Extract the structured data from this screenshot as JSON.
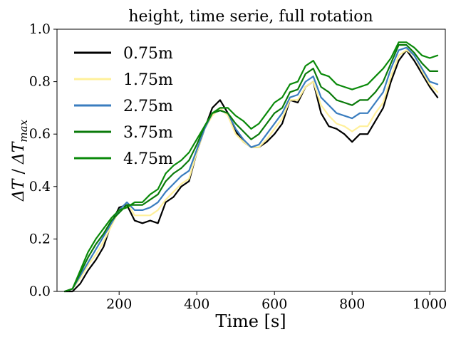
{
  "chart_data": {
    "type": "line",
    "title": "height, time serie, full rotation",
    "xlabel": "Time [s]",
    "ylabel": "ΔT / ΔT_max",
    "ylabel_parts": {
      "a": "ΔT",
      "slash": " / ",
      "b": "ΔT",
      "sub": "max"
    },
    "xlim": [
      40,
      1040
    ],
    "ylim": [
      0.0,
      1.0
    ],
    "xticks": [
      200,
      400,
      600,
      800,
      1000
    ],
    "yticks": [
      0.0,
      0.2,
      0.4,
      0.6,
      0.8,
      1.0
    ],
    "xtick_labels": [
      "200",
      "400",
      "600",
      "800",
      "1000"
    ],
    "ytick_labels": [
      "0.0",
      "0.2",
      "0.4",
      "0.6",
      "0.8",
      "1.0"
    ],
    "grid": false,
    "legend_position": "upper-left",
    "x": [
      60,
      80,
      100,
      120,
      140,
      160,
      180,
      200,
      220,
      240,
      260,
      280,
      300,
      320,
      340,
      360,
      380,
      400,
      420,
      440,
      460,
      480,
      500,
      520,
      540,
      560,
      580,
      600,
      620,
      640,
      660,
      680,
      700,
      720,
      740,
      760,
      780,
      800,
      820,
      840,
      860,
      880,
      900,
      920,
      940,
      960,
      980,
      1000,
      1020
    ],
    "series": [
      {
        "name": "0.75m",
        "color": "#000000",
        "values": [
          0.0,
          0.0,
          0.03,
          0.08,
          0.12,
          0.17,
          0.26,
          0.32,
          0.33,
          0.27,
          0.26,
          0.27,
          0.26,
          0.34,
          0.36,
          0.4,
          0.42,
          0.53,
          0.62,
          0.7,
          0.73,
          0.68,
          0.61,
          0.57,
          0.55,
          0.55,
          0.57,
          0.6,
          0.64,
          0.73,
          0.72,
          0.78,
          0.8,
          0.68,
          0.63,
          0.62,
          0.6,
          0.57,
          0.6,
          0.6,
          0.65,
          0.7,
          0.8,
          0.88,
          0.92,
          0.88,
          0.83,
          0.78,
          0.74
        ]
      },
      {
        "name": "1.75m",
        "color": "#fff09a",
        "values": [
          0.0,
          0.01,
          0.05,
          0.1,
          0.14,
          0.19,
          0.25,
          0.31,
          0.34,
          0.29,
          0.29,
          0.29,
          0.31,
          0.35,
          0.38,
          0.41,
          0.43,
          0.53,
          0.62,
          0.67,
          0.7,
          0.67,
          0.6,
          0.57,
          0.55,
          0.55,
          0.58,
          0.62,
          0.66,
          0.73,
          0.73,
          0.78,
          0.8,
          0.71,
          0.67,
          0.64,
          0.63,
          0.61,
          0.63,
          0.63,
          0.68,
          0.72,
          0.82,
          0.9,
          0.92,
          0.9,
          0.84,
          0.79,
          0.76
        ]
      },
      {
        "name": "2.75m",
        "color": "#3a7dbf",
        "values": [
          0.0,
          0.01,
          0.06,
          0.11,
          0.16,
          0.21,
          0.26,
          0.31,
          0.34,
          0.31,
          0.31,
          0.32,
          0.34,
          0.38,
          0.41,
          0.44,
          0.46,
          0.54,
          0.62,
          0.68,
          0.69,
          0.68,
          0.62,
          0.58,
          0.55,
          0.56,
          0.6,
          0.64,
          0.68,
          0.74,
          0.75,
          0.8,
          0.82,
          0.74,
          0.71,
          0.68,
          0.67,
          0.66,
          0.68,
          0.68,
          0.72,
          0.76,
          0.85,
          0.92,
          0.93,
          0.9,
          0.85,
          0.8,
          0.79
        ]
      },
      {
        "name": "3.75m",
        "color": "#0a7a0a",
        "values": [
          0.0,
          0.01,
          0.07,
          0.13,
          0.18,
          0.22,
          0.27,
          0.3,
          0.33,
          0.33,
          0.33,
          0.35,
          0.37,
          0.42,
          0.45,
          0.47,
          0.5,
          0.56,
          0.63,
          0.68,
          0.69,
          0.68,
          0.64,
          0.61,
          0.58,
          0.6,
          0.64,
          0.68,
          0.7,
          0.76,
          0.77,
          0.83,
          0.85,
          0.78,
          0.76,
          0.73,
          0.72,
          0.71,
          0.73,
          0.73,
          0.76,
          0.8,
          0.87,
          0.94,
          0.94,
          0.91,
          0.87,
          0.84,
          0.84
        ]
      },
      {
        "name": "4.75m",
        "color": "#0a8a0a",
        "values": [
          0.0,
          0.01,
          0.08,
          0.15,
          0.2,
          0.24,
          0.28,
          0.31,
          0.32,
          0.34,
          0.34,
          0.37,
          0.39,
          0.45,
          0.48,
          0.5,
          0.53,
          0.58,
          0.63,
          0.68,
          0.7,
          0.7,
          0.67,
          0.65,
          0.62,
          0.64,
          0.68,
          0.72,
          0.74,
          0.79,
          0.8,
          0.86,
          0.88,
          0.83,
          0.82,
          0.79,
          0.78,
          0.77,
          0.78,
          0.79,
          0.82,
          0.85,
          0.89,
          0.95,
          0.95,
          0.93,
          0.9,
          0.89,
          0.9
        ]
      }
    ]
  }
}
